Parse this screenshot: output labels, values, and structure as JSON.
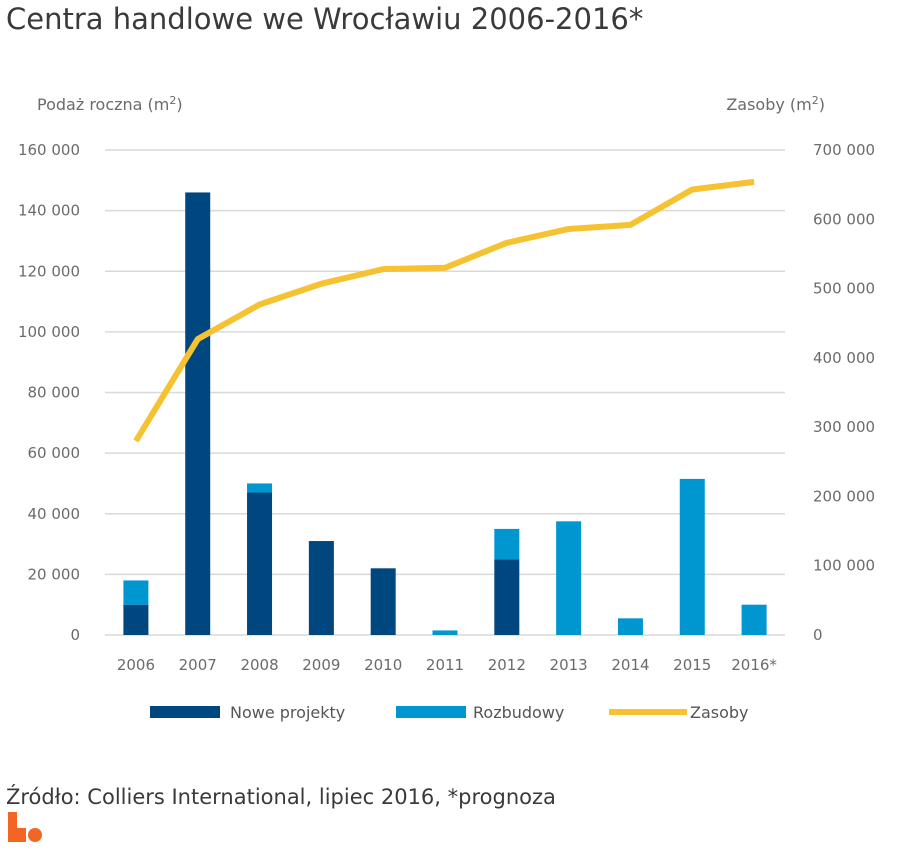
{
  "title": "Centra handlowe we Wrocławiu 2006-2016*",
  "source": "Źródło: Colliers International, lipiec 2016, *prognoza",
  "colors": {
    "nowe": "#004780",
    "rozbudowy": "#0096d0",
    "zasoby": "#f6c232",
    "grid": "#d9d9d9",
    "logo": "#f26522"
  },
  "chart_data": {
    "type": "bar",
    "categories": [
      "2006",
      "2007",
      "2008",
      "2009",
      "2010",
      "2011",
      "2012",
      "2013",
      "2014",
      "2015",
      "2016*"
    ],
    "series": [
      {
        "name": "Nowe projekty",
        "type": "bar",
        "stack": "supply",
        "axis": "left",
        "values": [
          10000,
          146000,
          47000,
          31000,
          22000,
          0,
          25000,
          0,
          0,
          0,
          0
        ]
      },
      {
        "name": "Rozbudowy",
        "type": "bar",
        "stack": "supply",
        "axis": "left",
        "values": [
          8000,
          0,
          3000,
          0,
          0,
          1500,
          10000,
          37500,
          5500,
          51500,
          10000
        ]
      },
      {
        "name": "Zasoby",
        "type": "line",
        "axis": "right",
        "values": [
          280000,
          427000,
          477000,
          507000,
          528000,
          530000,
          566000,
          586000,
          592000,
          643000,
          654000
        ]
      }
    ],
    "ylabel": "Podaż roczna (m",
    "ylabel_sup": "2",
    "ylabel_end": ")",
    "y2label": "Zasoby (m",
    "y2label_sup": "2",
    "y2label_end": ")",
    "ylim": [
      0,
      160000
    ],
    "y2lim": [
      0,
      700000
    ],
    "yticks": [
      0,
      20000,
      40000,
      60000,
      80000,
      100000,
      120000,
      140000,
      160000
    ],
    "ytick_labels": [
      "0",
      "20 000",
      "40 000",
      "60 000",
      "80 000",
      "100 000",
      "120 000",
      "140 000",
      "160 000"
    ],
    "y2ticks": [
      0,
      100000,
      200000,
      300000,
      400000,
      500000,
      600000,
      700000
    ],
    "y2tick_labels": [
      "0",
      "100 000",
      "200 000",
      "300 000",
      "400 000",
      "500 000",
      "600 000",
      "700 000"
    ],
    "grid": true,
    "legend": "bottom"
  }
}
